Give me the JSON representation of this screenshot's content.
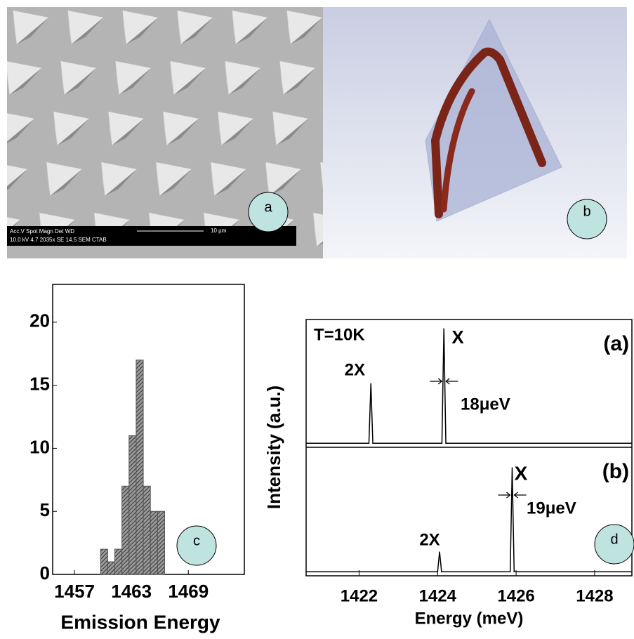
{
  "images": {
    "a": {
      "badge": "a",
      "scale_bar": [
        "Acc.V  Spot Magn   Det  WD",
        "10.0 kV 4.7   2035x   SE  14.5  SEM CTAB",
        "10 µm"
      ]
    },
    "b": {
      "badge": "b"
    }
  },
  "chart_data": [
    {
      "type": "histogram",
      "badge": "c",
      "xlabel": "Emission Energy",
      "bins": [
        1459.75,
        1460.5,
        1461.25,
        1462,
        1462.75,
        1463.5,
        1464.25,
        1465,
        1465.75,
        1466.5
      ],
      "values": [
        2,
        1,
        2,
        7,
        11,
        17,
        7,
        5,
        5
      ],
      "color": "#555555",
      "xlim": [
        1454.7,
        1474.9
      ],
      "ylim": [
        0,
        23
      ],
      "xticks": [
        1457,
        1463,
        1469
      ],
      "yticks": [
        0,
        5,
        10,
        15,
        20
      ]
    },
    {
      "type": "line",
      "badge": "d",
      "xlabel": "Energy (meV)",
      "ylabel": "Intensity (a.u.)",
      "color": "#000000",
      "xlim": [
        1420.65,
        1428.95
      ],
      "ylim": [
        0,
        1
      ],
      "xticks": [
        1422,
        1424,
        1426,
        1428
      ],
      "panels": [
        {
          "label": "(a)",
          "annotations": [
            "T=10K",
            "X",
            "2X",
            "18μeV"
          ],
          "x": [
            1420.65,
            1422.25,
            1422.3,
            1422.35,
            1424.11,
            1424.16,
            1424.21,
            1428.95
          ],
          "values": [
            0.01,
            0.01,
            0.49,
            0.01,
            0.01,
            0.93,
            0.01,
            0.01
          ]
        },
        {
          "label": "(b)",
          "annotations": [
            "X",
            "2X",
            "19μeV"
          ],
          "x": [
            1420.65,
            1424.0,
            1424.05,
            1424.1,
            1425.85,
            1425.9,
            1425.95,
            1428.95
          ],
          "values": [
            0.01,
            0.01,
            0.17,
            0.01,
            0.01,
            0.84,
            0.01,
            0.01
          ]
        }
      ]
    }
  ]
}
